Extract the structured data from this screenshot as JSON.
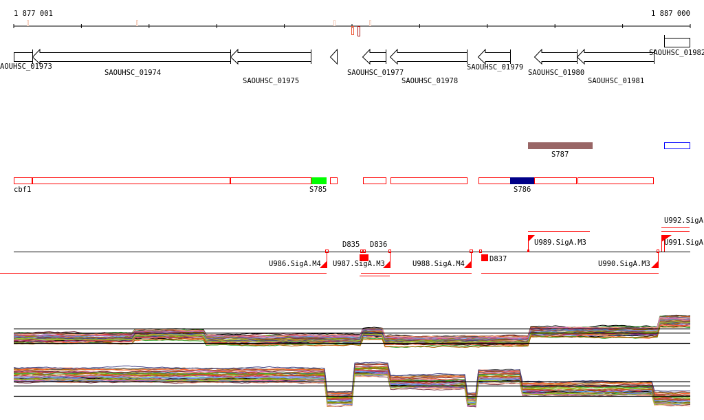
{
  "ruler": {
    "start_label": "1 877 001",
    "end_label": "1 887 000"
  },
  "genes": [
    {
      "id": "SAOUHSC_01973",
      "label": "AOUHSC_01973",
      "strand": "+"
    },
    {
      "id": "SAOUHSC_01974",
      "label": "SAOUHSC_01974",
      "strand": "-"
    },
    {
      "id": "SAOUHSC_01975",
      "label": "SAOUHSC_01975",
      "strand": "-"
    },
    {
      "id": "SAOUHSC_01977",
      "label": "SAOUHSC_01977",
      "strand": "-"
    },
    {
      "id": "SAOUHSC_01978",
      "label": "SAOUHSC_01978",
      "strand": "-"
    },
    {
      "id": "SAOUHSC_01979",
      "label": "SAOUHSC_01979",
      "strand": "-"
    },
    {
      "id": "SAOUHSC_01980",
      "label": "SAOUHSC_01980",
      "strand": "-"
    },
    {
      "id": "SAOUHSC_01981",
      "label": "SAOUHSC_01981",
      "strand": "-"
    },
    {
      "id": "SAOUHSC_01982",
      "label": "SAOUHSC_01982",
      "strand": "+"
    }
  ],
  "segments": {
    "labels": [
      "cbf1",
      "S785",
      "S786",
      "S787"
    ]
  },
  "promoters": {
    "labels": [
      "U986.SigA.M4",
      "U987.SigA.M3",
      "U988.SigA.M4",
      "U990.SigA.M3",
      "U989.SigA.M3",
      "U991.SigA",
      "U992.SigA",
      "D837",
      "D835",
      "D836"
    ]
  },
  "colors": {
    "segment_outline": "#ff0000",
    "s785": "#00ff00",
    "s786": "#000088",
    "s787": "#996666",
    "gene_outline": "#000000",
    "promoter": "#ff0000",
    "signal_palette": [
      "#000000",
      "#cc5522",
      "#88aa00",
      "#aa2266",
      "#66aaff",
      "#cc8844",
      "#555555",
      "#ff6633",
      "#996633",
      "#33aa33",
      "#aa88cc",
      "#dd3333",
      "#888800",
      "#773344",
      "#ffaa88",
      "#6688cc",
      "#aa6600",
      "#cc66aa",
      "#444488",
      "#99cc33"
    ]
  }
}
